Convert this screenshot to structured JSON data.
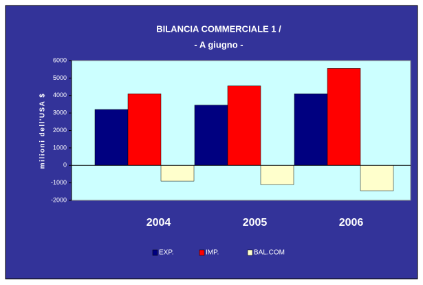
{
  "chart_data": {
    "type": "bar",
    "title": "BILANCIA COMMERCIALE 1 /",
    "subtitle": "- A giugno -",
    "y_label": "milioni dell'USA $",
    "categories": [
      "2004",
      "2005",
      "2006"
    ],
    "series": [
      {
        "name": "EXP.",
        "color": "#000080",
        "values": [
          3200,
          3450,
          4100
        ]
      },
      {
        "name": "IMP.",
        "color": "#ff0000",
        "values": [
          4100,
          4550,
          5550
        ]
      },
      {
        "name": "BAL.COM",
        "color": "#ffffcc",
        "values": [
          -900,
          -1100,
          -1450
        ]
      }
    ],
    "ylim": [
      -2000,
      6000
    ],
    "yticks": [
      -2000,
      -1000,
      0,
      1000,
      2000,
      3000,
      4000,
      5000,
      6000
    ],
    "grid": false,
    "legend": "bottom"
  }
}
